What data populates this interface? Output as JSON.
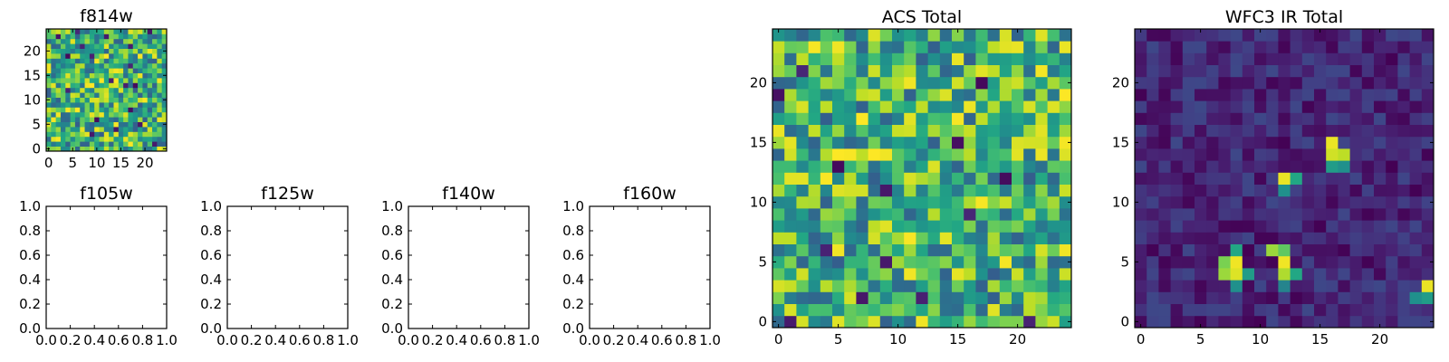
{
  "chart_data": [
    {
      "id": "f814w",
      "type": "heatmap",
      "title": "f814w",
      "xlabel": "",
      "ylabel": "",
      "colormap": "viridis",
      "grid_shape": [
        25,
        25
      ],
      "xlim": [
        -0.5,
        24.5
      ],
      "ylim": [
        -0.5,
        24.5
      ],
      "xticks": [
        "0",
        "5",
        "10",
        "15",
        "20"
      ],
      "yticks": [
        "0",
        "5",
        "10",
        "15",
        "20"
      ],
      "pattern": "noise",
      "noise_range": [
        0.3,
        1.0
      ]
    },
    {
      "id": "f105w",
      "type": "empty",
      "title": "f105w",
      "xlim": [
        0,
        1
      ],
      "ylim": [
        0,
        1
      ],
      "xticks": [
        "0.0",
        "0.2",
        "0.4",
        "0.6",
        "0.8",
        "1.0"
      ],
      "yticks": [
        "0.0",
        "0.2",
        "0.4",
        "0.6",
        "0.8",
        "1.0"
      ]
    },
    {
      "id": "f125w",
      "type": "empty",
      "title": "f125w",
      "xlim": [
        0,
        1
      ],
      "ylim": [
        0,
        1
      ],
      "xticks": [
        "0.0",
        "0.2",
        "0.4",
        "0.6",
        "0.8",
        "1.0"
      ],
      "yticks": [
        "0.0",
        "0.2",
        "0.4",
        "0.6",
        "0.8",
        "1.0"
      ]
    },
    {
      "id": "f140w",
      "type": "empty",
      "title": "f140w",
      "xlim": [
        0,
        1
      ],
      "ylim": [
        0,
        1
      ],
      "xticks": [
        "0.0",
        "0.2",
        "0.4",
        "0.6",
        "0.8",
        "1.0"
      ],
      "yticks": [
        "0.0",
        "0.2",
        "0.4",
        "0.6",
        "0.8",
        "1.0"
      ]
    },
    {
      "id": "f160w",
      "type": "empty",
      "title": "f160w",
      "xlim": [
        0,
        1
      ],
      "ylim": [
        0,
        1
      ],
      "xticks": [
        "0.0",
        "0.2",
        "0.4",
        "0.6",
        "0.8",
        "1.0"
      ],
      "yticks": [
        "0.0",
        "0.2",
        "0.4",
        "0.6",
        "0.8",
        "1.0"
      ]
    },
    {
      "id": "acs-total",
      "type": "heatmap",
      "title": "ACS Total",
      "xlabel": "",
      "ylabel": "",
      "colormap": "viridis",
      "grid_shape": [
        25,
        25
      ],
      "xlim": [
        -0.5,
        24.5
      ],
      "ylim": [
        -0.5,
        24.5
      ],
      "xticks": [
        "0",
        "5",
        "10",
        "15",
        "20"
      ],
      "yticks": [
        "0",
        "5",
        "10",
        "15",
        "20"
      ],
      "pattern": "noise",
      "noise_range": [
        0.3,
        1.0
      ]
    },
    {
      "id": "wfc3-ir-total",
      "type": "heatmap",
      "title": "WFC3 IR Total",
      "xlabel": "",
      "ylabel": "",
      "colormap": "viridis",
      "grid_shape": [
        25,
        25
      ],
      "xlim": [
        -0.5,
        24.5
      ],
      "ylim": [
        -0.5,
        24.5
      ],
      "xticks": [
        "0",
        "5",
        "10",
        "15",
        "20"
      ],
      "yticks": [
        "0",
        "5",
        "10",
        "15",
        "20"
      ],
      "pattern": "background-with-sources",
      "noise_range": [
        0.0,
        0.22
      ],
      "sources": [
        {
          "x": 16,
          "y": 15,
          "v": 0.97
        },
        {
          "x": 16,
          "y": 14,
          "v": 0.93
        },
        {
          "x": 17,
          "y": 14,
          "v": 0.9
        },
        {
          "x": 16,
          "y": 13,
          "v": 0.55
        },
        {
          "x": 17,
          "y": 13,
          "v": 0.5
        },
        {
          "x": 12,
          "y": 12,
          "v": 0.97
        },
        {
          "x": 13,
          "y": 12,
          "v": 0.6
        },
        {
          "x": 12,
          "y": 11,
          "v": 0.5
        },
        {
          "x": 8,
          "y": 6,
          "v": 0.6
        },
        {
          "x": 7,
          "y": 5,
          "v": 0.8
        },
        {
          "x": 8,
          "y": 5,
          "v": 0.98
        },
        {
          "x": 7,
          "y": 4,
          "v": 0.85
        },
        {
          "x": 8,
          "y": 4,
          "v": 0.95
        },
        {
          "x": 9,
          "y": 4,
          "v": 0.55
        },
        {
          "x": 8,
          "y": 3,
          "v": 0.5
        },
        {
          "x": 11,
          "y": 6,
          "v": 0.85
        },
        {
          "x": 12,
          "y": 6,
          "v": 0.75
        },
        {
          "x": 12,
          "y": 5,
          "v": 0.98
        },
        {
          "x": 12,
          "y": 4,
          "v": 0.88
        },
        {
          "x": 13,
          "y": 4,
          "v": 0.6
        },
        {
          "x": 12,
          "y": 3,
          "v": 0.45
        },
        {
          "x": 24,
          "y": 3,
          "v": 0.97
        },
        {
          "x": 23,
          "y": 2,
          "v": 0.5
        },
        {
          "x": 24,
          "y": 2,
          "v": 0.55
        }
      ]
    }
  ]
}
